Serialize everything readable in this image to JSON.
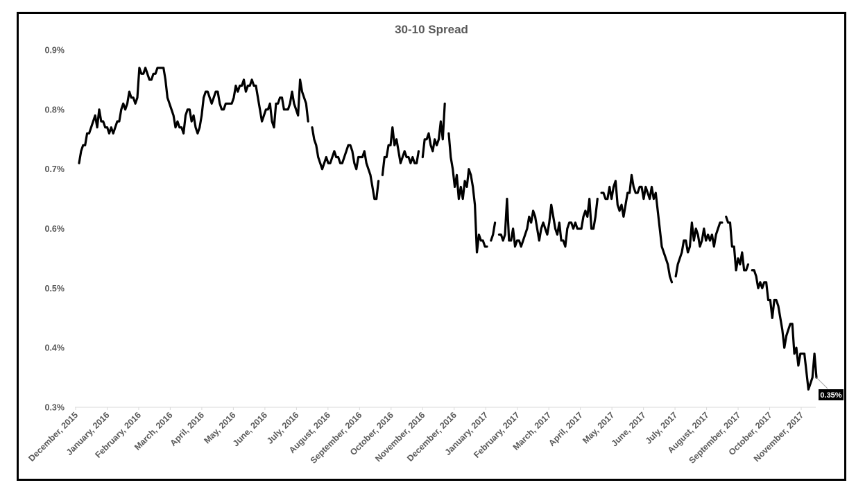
{
  "chart_data": {
    "type": "line",
    "title": "30-10  Spread",
    "xlabel": "",
    "ylabel": "",
    "ylim": [
      0.3,
      0.9
    ],
    "y_ticks": [
      "0.9%",
      "0.8%",
      "0.7%",
      "0.6%",
      "0.5%",
      "0.4%",
      "0.3%"
    ],
    "x_ticks": [
      "December, 2015",
      "January, 2016",
      "February, 2016",
      "March, 2016",
      "April, 2016",
      "May, 2016",
      "June, 2016",
      "July, 2016",
      "August, 2016",
      "September, 2016",
      "October, 2016",
      "November, 2016",
      "December, 2016",
      "January, 2017",
      "February, 2017",
      "March, 2017",
      "April, 2017",
      "May, 2017",
      "June, 2017",
      "July, 2017",
      "August, 2017",
      "September, 2017",
      "October, 2017",
      "November, 2017"
    ],
    "grid": false,
    "legend": "none",
    "series_color": "#000000",
    "last_value_label": "0.35%",
    "series": [
      {
        "values": [
          0.71,
          0.73,
          0.74,
          0.74,
          0.76,
          0.76,
          0.77,
          0.78,
          0.79,
          0.77,
          0.8,
          0.78,
          0.78,
          0.77,
          0.77,
          0.76,
          0.77,
          0.76,
          0.77,
          0.78,
          0.78,
          0.8,
          0.81,
          0.8,
          0.81,
          0.83,
          0.82,
          0.82,
          0.81,
          0.82,
          0.87,
          0.86,
          0.86,
          0.87,
          0.86,
          0.85,
          0.85,
          0.86,
          0.86,
          0.87,
          0.87,
          0.87,
          0.87,
          0.85,
          0.82,
          0.81,
          0.8,
          0.79,
          0.77,
          0.78,
          0.77,
          0.77,
          0.76,
          0.79,
          0.8,
          0.8,
          0.78,
          0.79,
          0.77,
          0.76,
          0.77,
          0.79,
          0.82,
          0.83,
          0.83,
          0.82,
          0.81,
          0.82,
          0.83,
          0.83,
          0.81,
          0.8,
          0.8,
          0.81,
          0.81,
          0.81,
          0.81,
          0.82,
          0.84,
          0.83,
          0.84,
          0.84,
          0.85,
          0.83,
          0.84,
          0.84,
          0.85,
          0.84,
          0.84,
          0.82,
          0.8,
          0.78,
          0.79,
          0.8,
          0.8,
          0.81,
          0.78,
          0.77,
          0.81,
          0.81,
          0.82,
          0.82,
          0.8,
          0.8,
          0.8,
          0.81,
          0.83,
          0.81,
          0.8,
          0.79,
          0.85,
          0.83,
          0.82,
          0.81,
          0.78,
          null,
          0.77,
          0.75,
          0.74,
          0.72,
          0.71,
          0.7,
          0.71,
          0.72,
          0.71,
          0.71,
          0.72,
          0.73,
          0.72,
          0.72,
          0.71,
          0.71,
          0.72,
          0.73,
          0.74,
          0.74,
          0.73,
          0.71,
          0.7,
          0.72,
          0.72,
          0.72,
          0.73,
          0.71,
          0.7,
          0.69,
          0.67,
          0.65,
          0.65,
          0.68,
          null,
          0.69,
          0.72,
          0.72,
          0.74,
          0.74,
          0.77,
          0.74,
          0.75,
          0.73,
          0.71,
          0.72,
          0.73,
          0.72,
          0.72,
          0.71,
          0.72,
          0.71,
          0.71,
          0.73,
          null,
          0.72,
          0.75,
          0.75,
          0.76,
          0.74,
          0.73,
          0.75,
          0.74,
          0.75,
          0.78,
          0.75,
          0.81,
          null,
          0.76,
          0.72,
          0.7,
          0.67,
          0.69,
          0.65,
          0.67,
          0.65,
          0.68,
          0.67,
          0.7,
          0.69,
          0.67,
          0.64,
          0.56,
          0.59,
          0.58,
          0.58,
          0.57,
          0.57,
          null,
          0.58,
          0.59,
          0.61,
          null,
          0.59,
          0.59,
          0.58,
          0.59,
          0.65,
          0.58,
          0.58,
          0.6,
          0.57,
          0.58,
          0.58,
          0.57,
          0.58,
          0.59,
          0.6,
          0.62,
          0.61,
          0.63,
          0.62,
          0.6,
          0.58,
          0.6,
          0.61,
          0.6,
          0.59,
          0.61,
          0.64,
          0.62,
          0.6,
          0.59,
          0.61,
          0.58,
          0.58,
          0.57,
          0.6,
          0.61,
          0.61,
          0.6,
          0.61,
          0.6,
          0.6,
          0.6,
          0.62,
          0.63,
          0.62,
          0.65,
          0.6,
          0.6,
          0.62,
          0.65,
          null,
          0.66,
          0.66,
          0.65,
          0.65,
          0.67,
          0.65,
          0.67,
          0.68,
          0.64,
          0.63,
          0.64,
          0.62,
          0.64,
          0.66,
          0.66,
          0.69,
          0.67,
          0.66,
          0.66,
          0.67,
          0.67,
          0.65,
          0.67,
          0.66,
          0.65,
          0.67,
          0.65,
          0.66,
          0.63,
          0.6,
          0.57,
          0.56,
          0.55,
          0.54,
          0.52,
          0.51,
          null,
          0.52,
          0.54,
          0.55,
          0.56,
          0.58,
          0.58,
          0.56,
          0.57,
          0.61,
          0.58,
          0.6,
          0.59,
          0.57,
          0.58,
          0.6,
          0.58,
          0.59,
          0.58,
          0.59,
          0.57,
          0.59,
          0.6,
          0.61,
          0.61,
          null,
          0.62,
          0.61,
          0.61,
          0.57,
          0.57,
          0.53,
          0.55,
          0.54,
          0.56,
          0.53,
          0.53,
          0.54,
          null,
          0.53,
          0.53,
          0.52,
          0.5,
          0.51,
          0.5,
          0.51,
          0.51,
          0.48,
          0.48,
          0.45,
          0.48,
          0.48,
          0.47,
          0.45,
          0.43,
          0.4,
          0.42,
          0.43,
          0.44,
          0.44,
          0.39,
          0.4,
          0.37,
          0.39,
          0.39,
          0.39,
          0.36,
          0.33,
          0.34,
          0.35,
          0.39,
          0.35
        ]
      }
    ]
  }
}
